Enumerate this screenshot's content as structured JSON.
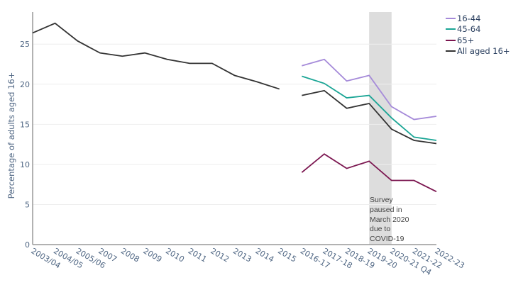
{
  "chart_data": {
    "type": "line",
    "ylabel": "Percentage of adults aged 16+",
    "xlabel": "",
    "ylim": [
      0,
      29
    ],
    "yticks": [
      0,
      5,
      10,
      15,
      20,
      25
    ],
    "grid": true,
    "legend_position": "top-right",
    "categories": [
      "2003/04",
      "2004/05",
      "2005/06",
      "2007",
      "2008",
      "2009",
      "2010",
      "2011",
      "2012",
      "2013",
      "2014",
      "2015",
      "2016-17",
      "2017-18",
      "2018-19",
      "2019-20",
      "2020-21 Q4",
      "2021-22",
      "2022-23"
    ],
    "series": [
      {
        "name": "16-44",
        "color": "#a58ad9",
        "values": [
          null,
          null,
          null,
          null,
          null,
          null,
          null,
          null,
          null,
          null,
          null,
          null,
          22.3,
          23.1,
          20.4,
          21.1,
          17.2,
          15.6,
          16.0
        ]
      },
      {
        "name": "45-64",
        "color": "#1aa595",
        "values": [
          null,
          null,
          null,
          null,
          null,
          null,
          null,
          null,
          null,
          null,
          null,
          null,
          21.0,
          20.1,
          18.3,
          18.6,
          15.8,
          13.4,
          13.0
        ]
      },
      {
        "name": "65+",
        "color": "#7b1650",
        "values": [
          null,
          null,
          null,
          null,
          null,
          null,
          null,
          null,
          null,
          null,
          null,
          null,
          9.0,
          11.3,
          9.5,
          10.4,
          8.0,
          8.0,
          6.6
        ]
      },
      {
        "name": "All aged 16+",
        "color": "#333333",
        "values": [
          26.4,
          27.6,
          25.4,
          23.9,
          23.5,
          23.9,
          23.1,
          22.6,
          22.6,
          21.1,
          20.3,
          19.4,
          18.6,
          19.2,
          17.0,
          17.6,
          14.4,
          13.0,
          12.6
        ]
      }
    ],
    "shaded_region": {
      "from": "2019-20",
      "to": "2020-21 Q4",
      "color": "#dddddd"
    },
    "annotation": [
      "Survey",
      "paused in",
      "March 2020",
      "due to",
      "COVID-19"
    ]
  }
}
